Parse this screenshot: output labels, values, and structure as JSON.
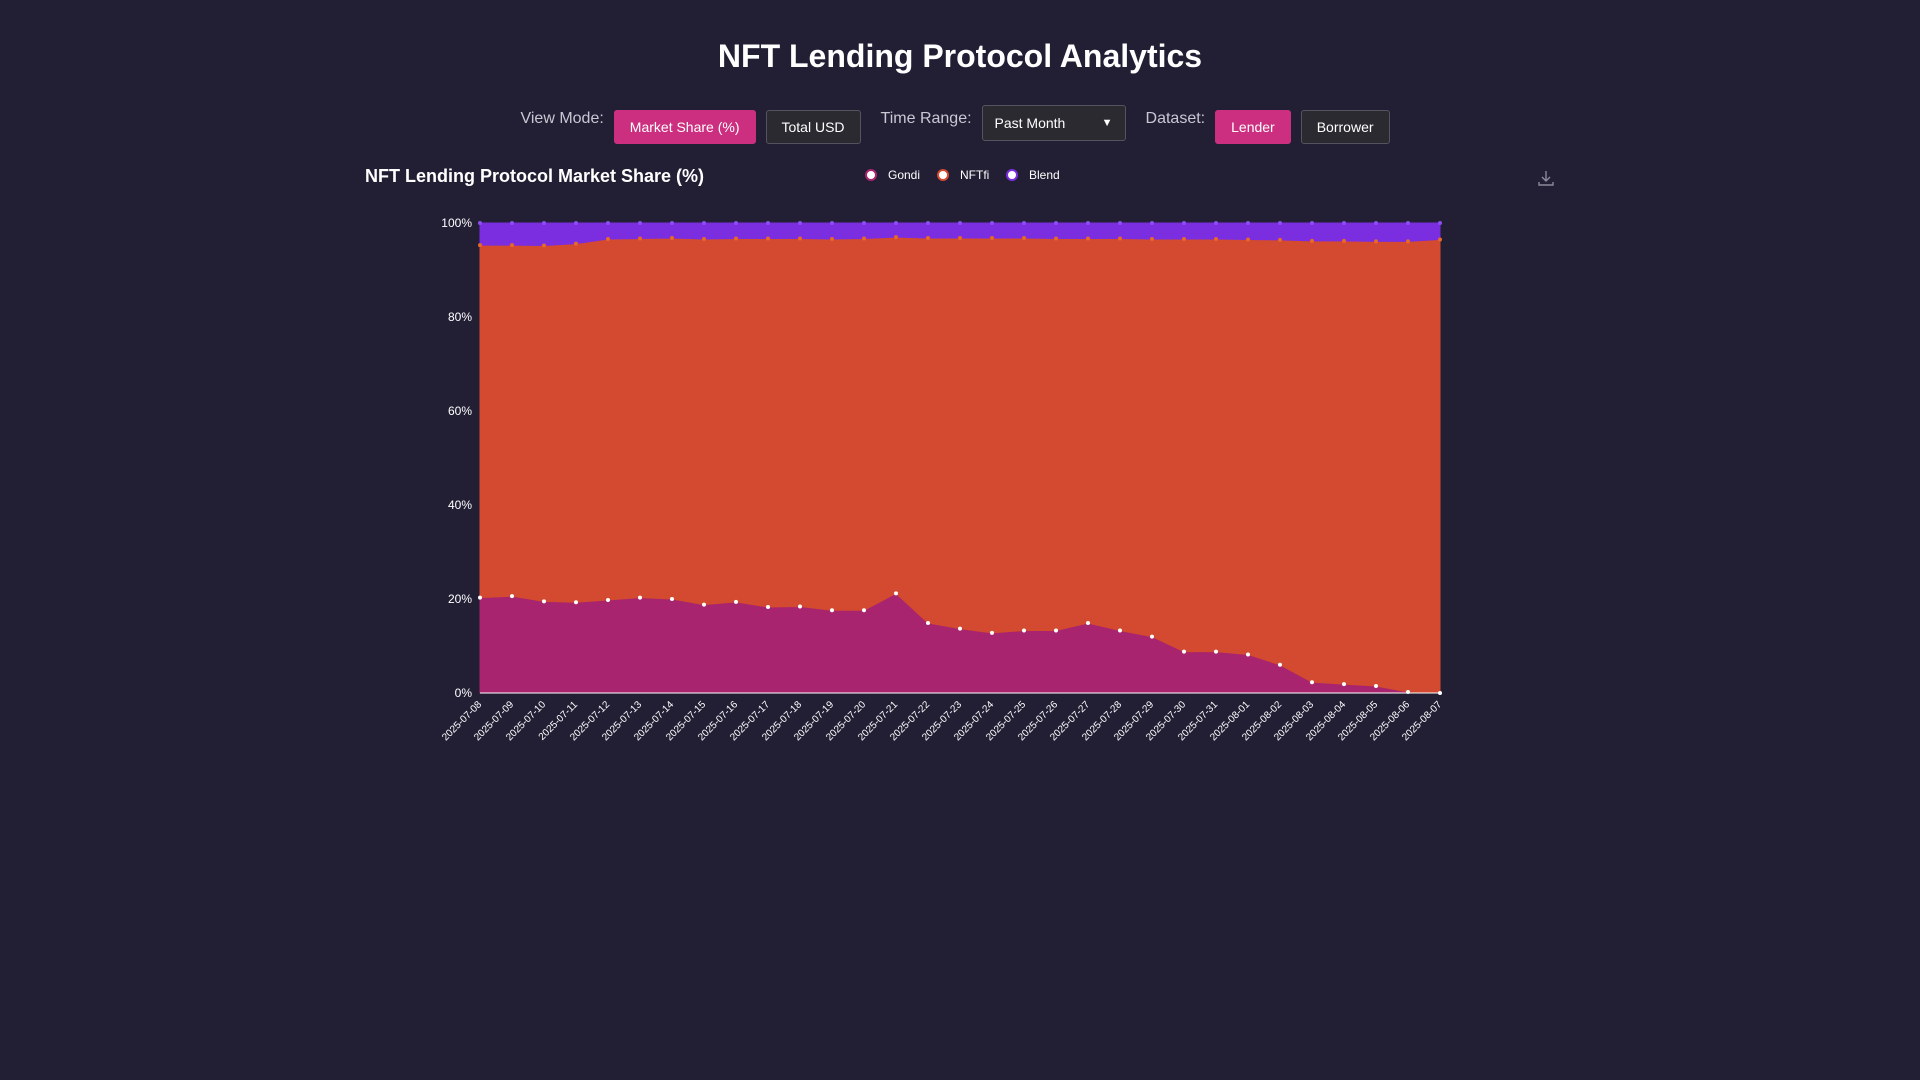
{
  "page": {
    "title": "NFT Lending Protocol Analytics"
  },
  "controls": {
    "view_mode_label": "View Mode:",
    "view_modes": [
      "Market Share (%)",
      "Total USD"
    ],
    "time_range_label": "Time Range:",
    "time_range_value": "Past Month",
    "dataset_label": "Dataset:",
    "datasets": [
      "Lender",
      "Borrower"
    ]
  },
  "colors": {
    "background": "#221f35",
    "accent": "#cc2f80",
    "gondi": "#a8246e",
    "nftfi": "#d34a30",
    "blend": "#7a2ee0"
  },
  "icons": {
    "download": "download-icon"
  },
  "chart_data": {
    "type": "area",
    "stacked": true,
    "title": "NFT Lending Protocol Market Share (%)",
    "ylim": [
      0,
      100
    ],
    "yticks": [
      "0%",
      "20%",
      "40%",
      "60%",
      "80%",
      "100%"
    ],
    "grid": true,
    "legend_position": "top-center",
    "x": [
      "2025-07-08",
      "2025-07-09",
      "2025-07-10",
      "2025-07-11",
      "2025-07-12",
      "2025-07-13",
      "2025-07-14",
      "2025-07-15",
      "2025-07-16",
      "2025-07-17",
      "2025-07-18",
      "2025-07-19",
      "2025-07-20",
      "2025-07-21",
      "2025-07-22",
      "2025-07-23",
      "2025-07-24",
      "2025-07-25",
      "2025-07-26",
      "2025-07-27",
      "2025-07-28",
      "2025-07-29",
      "2025-07-30",
      "2025-07-31",
      "2025-08-01",
      "2025-08-02",
      "2025-08-03",
      "2025-08-04",
      "2025-08-05",
      "2025-08-06",
      "2025-08-07"
    ],
    "series": [
      {
        "name": "Gondi",
        "color": "#a8246e",
        "marker": "#ffffff",
        "values": [
          20.3,
          20.6,
          19.5,
          19.3,
          19.8,
          20.3,
          20.0,
          18.8,
          19.4,
          18.3,
          18.4,
          17.6,
          17.6,
          21.2,
          14.9,
          13.7,
          12.8,
          13.3,
          13.3,
          14.9,
          13.3,
          12.0,
          8.8,
          8.8,
          8.2,
          6.0,
          2.3,
          1.9,
          1.5,
          0.2,
          0.0
        ]
      },
      {
        "name": "NFTfi",
        "color": "#d34a30",
        "marker": "#e8682a",
        "values": [
          75.0,
          74.7,
          75.7,
          76.3,
          76.8,
          76.4,
          76.8,
          77.8,
          77.3,
          78.4,
          78.3,
          79.0,
          79.1,
          75.8,
          81.9,
          83.1,
          84.0,
          83.5,
          83.4,
          81.8,
          83.4,
          84.6,
          87.8,
          87.8,
          88.3,
          90.4,
          93.9,
          94.3,
          94.6,
          95.9,
          96.5
        ]
      },
      {
        "name": "Blend",
        "color": "#7a2ee0",
        "marker": "#8c4cf0",
        "values": [
          4.7,
          4.7,
          4.8,
          4.4,
          3.4,
          3.3,
          3.2,
          3.4,
          3.3,
          3.3,
          3.3,
          3.4,
          3.3,
          3.0,
          3.2,
          3.2,
          3.2,
          3.2,
          3.3,
          3.3,
          3.3,
          3.4,
          3.4,
          3.4,
          3.5,
          3.6,
          3.8,
          3.8,
          3.9,
          3.9,
          3.5
        ]
      }
    ]
  }
}
